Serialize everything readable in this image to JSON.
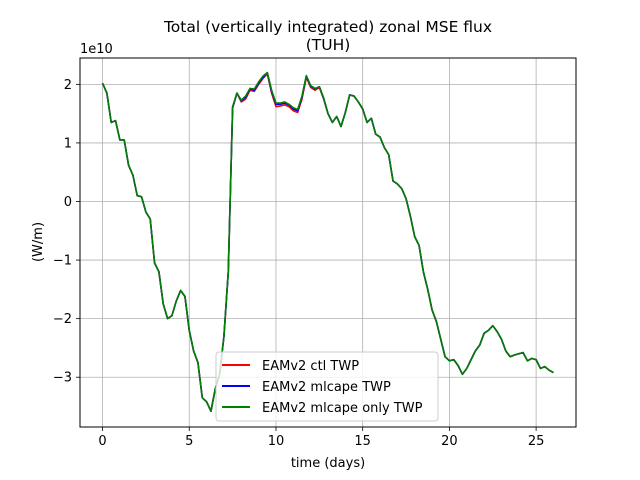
{
  "chart_data": {
    "type": "line",
    "title": "Total (vertically integrated) zonal MSE flux",
    "subtitle": "(TUH)",
    "xlabel": "time (days)",
    "ylabel": "(W/m)",
    "y_offset_label": "1e10",
    "xlim": [
      -1.3,
      27.3
    ],
    "ylim": [
      -3.85,
      2.45
    ],
    "x_ticks": [
      0,
      5,
      10,
      15,
      20,
      25
    ],
    "y_ticks": [
      -3,
      -2,
      -1,
      0,
      1,
      2
    ],
    "x_tick_labels": [
      "0",
      "5",
      "10",
      "15",
      "20",
      "25"
    ],
    "y_tick_labels": [
      "−3",
      "−2",
      "−1",
      "0",
      "1",
      "2"
    ],
    "grid": true,
    "legend_position": "lower-center",
    "series": [
      {
        "name": "EAMv2 ctl TWP",
        "color": "#ff0000",
        "x": [
          0,
          0.25,
          0.5,
          0.75,
          1.0,
          1.25,
          1.5,
          1.75,
          2.0,
          2.25,
          2.5,
          2.75,
          3.0,
          3.25,
          3.5,
          3.75,
          4.0,
          4.25,
          4.5,
          4.75,
          5.0,
          5.25,
          5.5,
          5.75,
          6.0,
          6.25,
          6.5,
          6.75,
          7.0,
          7.25,
          7.5,
          7.75,
          8.0,
          8.25,
          8.5,
          8.75,
          9.0,
          9.25,
          9.5,
          9.75,
          10.0,
          10.25,
          10.5,
          10.75,
          11.0,
          11.25,
          11.5,
          11.75,
          12.0,
          12.25,
          12.5,
          12.75,
          13.0,
          13.25,
          13.5,
          13.75,
          14.0,
          14.25,
          14.5,
          14.75,
          15.0,
          15.25,
          15.5,
          15.75,
          16.0,
          16.25,
          16.5,
          16.75,
          17.0,
          17.25,
          17.5,
          17.75,
          18.0,
          18.25,
          18.5,
          18.75,
          19.0,
          19.25,
          19.5,
          19.75,
          20.0,
          20.25,
          20.5,
          20.75,
          21.0,
          21.25,
          21.5,
          21.75,
          22.0,
          22.25,
          22.5,
          22.75,
          23.0,
          23.25,
          23.5,
          23.75,
          24.0,
          24.25,
          24.5,
          24.75,
          25.0,
          25.25,
          25.5,
          25.75,
          26.0
        ],
        "values": [
          2.02,
          1.85,
          1.35,
          1.38,
          1.05,
          1.05,
          0.62,
          0.45,
          0.1,
          0.08,
          -0.18,
          -0.3,
          -1.05,
          -1.2,
          -1.75,
          -2.0,
          -1.95,
          -1.7,
          -1.52,
          -1.62,
          -2.2,
          -2.55,
          -2.75,
          -3.35,
          -3.42,
          -3.58,
          -3.2,
          -2.95,
          -2.3,
          -1.2,
          1.6,
          1.85,
          1.7,
          1.75,
          1.9,
          1.88,
          2.0,
          2.1,
          2.18,
          1.85,
          1.62,
          1.63,
          1.65,
          1.62,
          1.55,
          1.52,
          1.75,
          2.12,
          1.95,
          1.9,
          1.95,
          1.75,
          1.5,
          1.35,
          1.45,
          1.28,
          1.52,
          1.82,
          1.8,
          1.7,
          1.58,
          1.35,
          1.42,
          1.15,
          1.1,
          0.92,
          0.8,
          0.35,
          0.3,
          0.22,
          0.05,
          -0.25,
          -0.6,
          -0.75,
          -1.2,
          -1.5,
          -1.85,
          -2.05,
          -2.35,
          -2.65,
          -2.72,
          -2.7,
          -2.8,
          -2.95,
          -2.85,
          -2.7,
          -2.55,
          -2.45,
          -2.25,
          -2.2,
          -2.12,
          -2.22,
          -2.35,
          -2.55,
          -2.65,
          -2.62,
          -2.6,
          -2.58,
          -2.72,
          -2.68,
          -2.7,
          -2.85,
          -2.82,
          -2.88,
          -2.92
        ]
      },
      {
        "name": "EAMv2 mlcape TWP",
        "color": "#0000ff",
        "x": [
          0,
          0.25,
          0.5,
          0.75,
          1.0,
          1.25,
          1.5,
          1.75,
          2.0,
          2.25,
          2.5,
          2.75,
          3.0,
          3.25,
          3.5,
          3.75,
          4.0,
          4.25,
          4.5,
          4.75,
          5.0,
          5.25,
          5.5,
          5.75,
          6.0,
          6.25,
          6.5,
          6.75,
          7.0,
          7.25,
          7.5,
          7.75,
          8.0,
          8.25,
          8.5,
          8.75,
          9.0,
          9.25,
          9.5,
          9.75,
          10.0,
          10.25,
          10.5,
          10.75,
          11.0,
          11.25,
          11.5,
          11.75,
          12.0,
          12.25,
          12.5,
          12.75,
          13.0,
          13.25,
          13.5,
          13.75,
          14.0,
          14.25,
          14.5,
          14.75,
          15.0,
          15.25,
          15.5,
          15.75,
          16.0,
          16.25,
          16.5,
          16.75,
          17.0,
          17.25,
          17.5,
          17.75,
          18.0,
          18.25,
          18.5,
          18.75,
          19.0,
          19.25,
          19.5,
          19.75,
          20.0,
          20.25,
          20.5,
          20.75,
          21.0,
          21.25,
          21.5,
          21.75,
          22.0,
          22.25,
          22.5,
          22.75,
          23.0,
          23.25,
          23.5,
          23.75,
          24.0,
          24.25,
          24.5,
          24.75,
          25.0,
          25.25,
          25.5,
          25.75,
          26.0
        ],
        "values": [
          2.02,
          1.85,
          1.35,
          1.38,
          1.05,
          1.05,
          0.62,
          0.45,
          0.1,
          0.08,
          -0.18,
          -0.3,
          -1.05,
          -1.2,
          -1.75,
          -2.0,
          -1.95,
          -1.7,
          -1.52,
          -1.62,
          -2.2,
          -2.55,
          -2.75,
          -3.35,
          -3.42,
          -3.58,
          -3.2,
          -2.95,
          -2.3,
          -1.2,
          1.6,
          1.85,
          1.72,
          1.78,
          1.92,
          1.9,
          2.02,
          2.12,
          2.2,
          1.88,
          1.66,
          1.66,
          1.68,
          1.65,
          1.58,
          1.55,
          1.78,
          2.14,
          1.97,
          1.92,
          1.96,
          1.76,
          1.5,
          1.35,
          1.45,
          1.28,
          1.52,
          1.82,
          1.8,
          1.7,
          1.58,
          1.35,
          1.42,
          1.15,
          1.1,
          0.92,
          0.8,
          0.35,
          0.3,
          0.22,
          0.05,
          -0.25,
          -0.6,
          -0.75,
          -1.2,
          -1.5,
          -1.85,
          -2.05,
          -2.35,
          -2.65,
          -2.72,
          -2.7,
          -2.8,
          -2.95,
          -2.85,
          -2.7,
          -2.55,
          -2.45,
          -2.25,
          -2.2,
          -2.12,
          -2.22,
          -2.35,
          -2.55,
          -2.65,
          -2.62,
          -2.6,
          -2.58,
          -2.72,
          -2.68,
          -2.7,
          -2.85,
          -2.82,
          -2.88,
          -2.92
        ]
      },
      {
        "name": "EAMv2 mlcape only TWP",
        "color": "#008000",
        "x": [
          0,
          0.25,
          0.5,
          0.75,
          1.0,
          1.25,
          1.5,
          1.75,
          2.0,
          2.25,
          2.5,
          2.75,
          3.0,
          3.25,
          3.5,
          3.75,
          4.0,
          4.25,
          4.5,
          4.75,
          5.0,
          5.25,
          5.5,
          5.75,
          6.0,
          6.25,
          6.5,
          6.75,
          7.0,
          7.25,
          7.5,
          7.75,
          8.0,
          8.25,
          8.5,
          8.75,
          9.0,
          9.25,
          9.5,
          9.75,
          10.0,
          10.25,
          10.5,
          10.75,
          11.0,
          11.25,
          11.5,
          11.75,
          12.0,
          12.25,
          12.5,
          12.75,
          13.0,
          13.25,
          13.5,
          13.75,
          14.0,
          14.25,
          14.5,
          14.75,
          15.0,
          15.25,
          15.5,
          15.75,
          16.0,
          16.25,
          16.5,
          16.75,
          17.0,
          17.25,
          17.5,
          17.75,
          18.0,
          18.25,
          18.5,
          18.75,
          19.0,
          19.25,
          19.5,
          19.75,
          20.0,
          20.25,
          20.5,
          20.75,
          21.0,
          21.25,
          21.5,
          21.75,
          22.0,
          22.25,
          22.5,
          22.75,
          23.0,
          23.25,
          23.5,
          23.75,
          24.0,
          24.25,
          24.5,
          24.75,
          25.0,
          25.25,
          25.5,
          25.75,
          26.0
        ],
        "values": [
          2.02,
          1.85,
          1.35,
          1.38,
          1.05,
          1.05,
          0.62,
          0.45,
          0.1,
          0.08,
          -0.18,
          -0.3,
          -1.05,
          -1.2,
          -1.75,
          -2.0,
          -1.95,
          -1.7,
          -1.52,
          -1.62,
          -2.2,
          -2.55,
          -2.75,
          -3.35,
          -3.42,
          -3.58,
          -3.2,
          -2.95,
          -2.3,
          -1.2,
          1.62,
          1.85,
          1.73,
          1.8,
          1.93,
          1.92,
          2.04,
          2.14,
          2.2,
          1.9,
          1.68,
          1.68,
          1.7,
          1.66,
          1.6,
          1.57,
          1.8,
          2.15,
          1.98,
          1.93,
          1.96,
          1.77,
          1.5,
          1.35,
          1.45,
          1.28,
          1.52,
          1.82,
          1.8,
          1.7,
          1.58,
          1.35,
          1.42,
          1.15,
          1.1,
          0.92,
          0.8,
          0.35,
          0.3,
          0.22,
          0.05,
          -0.25,
          -0.6,
          -0.75,
          -1.2,
          -1.5,
          -1.85,
          -2.05,
          -2.35,
          -2.65,
          -2.72,
          -2.7,
          -2.8,
          -2.95,
          -2.85,
          -2.7,
          -2.55,
          -2.45,
          -2.25,
          -2.2,
          -2.12,
          -2.22,
          -2.35,
          -2.55,
          -2.65,
          -2.62,
          -2.6,
          -2.58,
          -2.72,
          -2.68,
          -2.7,
          -2.85,
          -2.82,
          -2.88,
          -2.92
        ]
      }
    ]
  }
}
